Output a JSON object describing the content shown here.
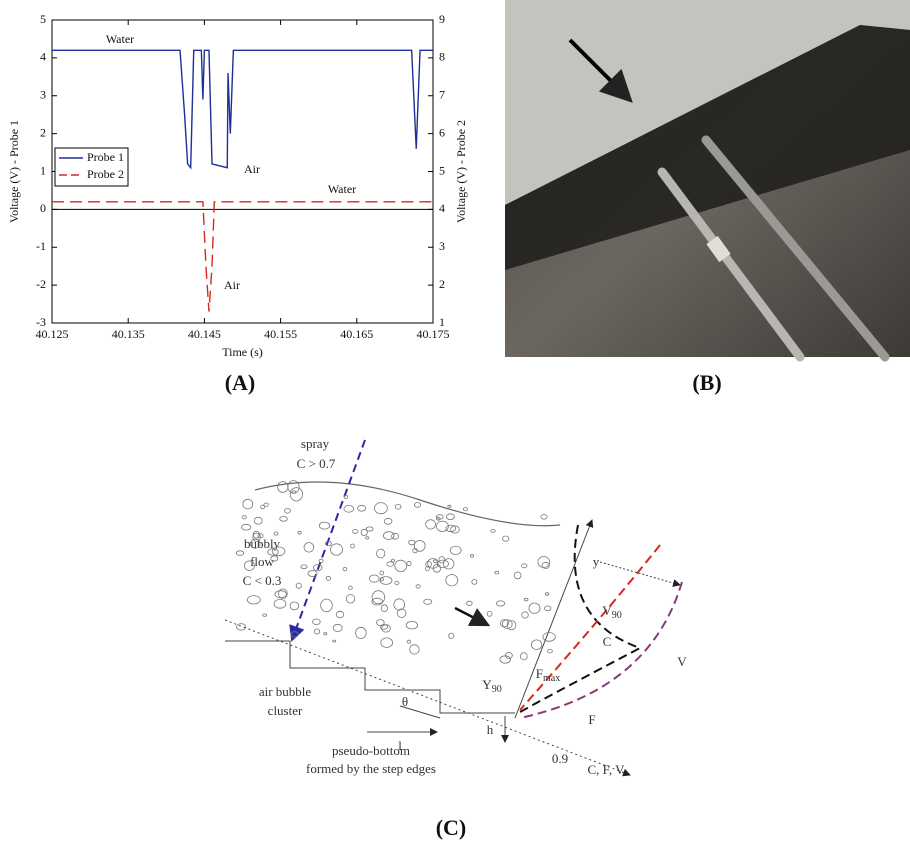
{
  "chart_data": {
    "type": "line",
    "x_label": "Time (s)",
    "y_label": "Voltage (V) - Probe 1",
    "y2_label": "Voltage (V) - Probe 2",
    "xlim": [
      40.125,
      40.175
    ],
    "xticks": [
      40.125,
      40.135,
      40.145,
      40.155,
      40.165,
      40.175
    ],
    "ylim": [
      -3,
      5
    ],
    "yticks": [
      -3,
      -2,
      -1,
      0,
      1,
      2,
      3,
      4,
      5
    ],
    "y2lim": [
      1,
      9
    ],
    "y2ticks": [
      1,
      2,
      3,
      4,
      5,
      6,
      7,
      8,
      9
    ],
    "legend": "left",
    "series": [
      {
        "name": "Probe 1",
        "color": "#1f2f99",
        "dash": false,
        "x": [
          40.125,
          40.1418,
          40.1424,
          40.1428,
          40.1432,
          40.1436,
          40.1446,
          40.1448,
          40.145,
          40.1456,
          40.146,
          40.148,
          40.1481,
          40.1484,
          40.1488,
          40.1722,
          40.1728,
          40.1733,
          40.175
        ],
        "values": [
          4.2,
          4.2,
          2.5,
          1.2,
          1.1,
          4.2,
          4.2,
          2.9,
          4.2,
          4.2,
          1.2,
          1.1,
          3.6,
          2.0,
          4.2,
          4.2,
          1.6,
          4.2,
          4.2
        ]
      },
      {
        "name": "Probe 2",
        "color": "#d42a20",
        "dash": true,
        "axis": "y2",
        "x": [
          40.125,
          40.1448,
          40.1452,
          40.1456,
          40.146,
          40.1463,
          40.175
        ],
        "values": [
          4.2,
          4.2,
          2.5,
          1.3,
          2.5,
          4.2,
          4.2
        ]
      }
    ],
    "annotations": [
      "Water",
      "Air",
      "Water",
      "Air"
    ]
  },
  "panels": {
    "a": "(A)",
    "b": "(B)",
    "c": "(C)"
  },
  "diagram": {
    "spray": "spray",
    "spray_c": "C > 0.7",
    "bubbly": "bubbly",
    "flow": "flow",
    "bubbly_c": "C < 0.3",
    "cluster_1": "air bubble",
    "cluster_2": "cluster",
    "bottom_1": "pseudo-bottom",
    "bottom_2": "formed by the step edges",
    "theta": "θ",
    "l": "l",
    "h": "h",
    "y": "y",
    "v90": {
      "main": "V",
      "sub": "90"
    },
    "c": "C",
    "fmax": {
      "main": "F",
      "sub": "max"
    },
    "y90": {
      "main": "Y",
      "sub": "90"
    },
    "f": "F",
    "v": "V",
    "x09": "0.9",
    "axis": "C, F, V"
  }
}
